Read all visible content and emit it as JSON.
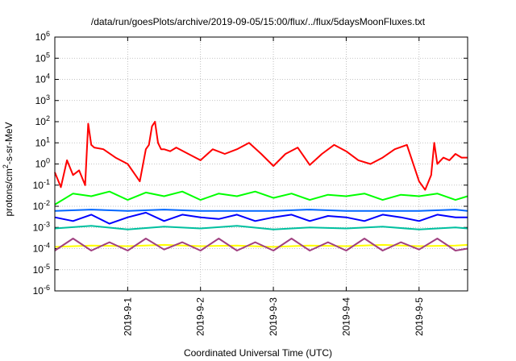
{
  "chart_data": {
    "type": "line",
    "title": "/data/run/goesPlots/archive/2019-09-05/15:00/flux/../flux/5daysMoonFluxes.txt",
    "xlabel": "Coordinated Universal Time (UTC)",
    "ylabel": "protons/cm^2-s-sr-MeV",
    "yscale": "log",
    "ylim": [
      1e-06,
      1000000.0
    ],
    "xlim": [
      "2019-08-31 00:00",
      "2019-09-05 16:00"
    ],
    "grid": true,
    "y_ticks": [
      "10^-6",
      "10^-5",
      "10^-4",
      "10^-3",
      "10^-2",
      "10^-1",
      "10^0",
      "10^1",
      "10^2",
      "10^3",
      "10^4",
      "10^5",
      "10^6"
    ],
    "x_ticks": [
      "2019-9-1",
      "2019-9-2",
      "2019-9-3",
      "2019-9-4",
      "2019-9-5"
    ],
    "series": [
      {
        "color": "#ff0000",
        "x": [
          "2019-08-31 00:00",
          "2019-08-31 02:00",
          "2019-08-31 04:00",
          "2019-08-31 06:00",
          "2019-08-31 08:00",
          "2019-08-31 10:00",
          "2019-08-31 11:00",
          "2019-08-31 12:00",
          "2019-08-31 13:00",
          "2019-08-31 16:00",
          "2019-08-31 20:00",
          "2019-09-01 00:00",
          "2019-09-01 04:00",
          "2019-09-01 06:00",
          "2019-09-01 07:00",
          "2019-09-01 08:00",
          "2019-09-01 09:00",
          "2019-09-01 10:00",
          "2019-09-01 11:00",
          "2019-09-01 12:00",
          "2019-09-01 14:00",
          "2019-09-01 16:00",
          "2019-09-01 20:00",
          "2019-09-02 00:00",
          "2019-09-02 04:00",
          "2019-09-02 08:00",
          "2019-09-02 12:00",
          "2019-09-02 16:00",
          "2019-09-02 20:00",
          "2019-09-03 00:00",
          "2019-09-03 04:00",
          "2019-09-03 08:00",
          "2019-09-03 12:00",
          "2019-09-03 16:00",
          "2019-09-03 20:00",
          "2019-09-04 00:00",
          "2019-09-04 04:00",
          "2019-09-04 08:00",
          "2019-09-04 12:00",
          "2019-09-04 16:00",
          "2019-09-04 20:00",
          "2019-09-05 00:00",
          "2019-09-05 02:00",
          "2019-09-05 04:00",
          "2019-09-05 05:00",
          "2019-09-05 06:00",
          "2019-09-05 08:00",
          "2019-09-05 10:00",
          "2019-09-05 12:00",
          "2019-09-05 14:00",
          "2019-09-05 16:00"
        ],
        "values": [
          0.4,
          0.08,
          1.5,
          0.3,
          0.5,
          0.1,
          80,
          8,
          6,
          5,
          2,
          1,
          0.15,
          5,
          8,
          60,
          100,
          10,
          5,
          5,
          4,
          6,
          3,
          1.5,
          5,
          3,
          5,
          10,
          3,
          0.8,
          3,
          6,
          0.9,
          3,
          8,
          4,
          1.5,
          1,
          2,
          5,
          8,
          0.15,
          0.06,
          0.3,
          10,
          1,
          2,
          1.5,
          3,
          2,
          2
        ]
      },
      {
        "color": "#00ff00",
        "x": [
          "2019-08-31 00:00",
          "2019-08-31 06:00",
          "2019-08-31 12:00",
          "2019-08-31 18:00",
          "2019-09-01 00:00",
          "2019-09-01 06:00",
          "2019-09-01 12:00",
          "2019-09-01 18:00",
          "2019-09-02 00:00",
          "2019-09-02 06:00",
          "2019-09-02 12:00",
          "2019-09-02 18:00",
          "2019-09-03 00:00",
          "2019-09-03 06:00",
          "2019-09-03 12:00",
          "2019-09-03 18:00",
          "2019-09-04 00:00",
          "2019-09-04 06:00",
          "2019-09-04 12:00",
          "2019-09-04 18:00",
          "2019-09-05 00:00",
          "2019-09-05 06:00",
          "2019-09-05 12:00",
          "2019-09-05 16:00"
        ],
        "values": [
          0.012,
          0.04,
          0.03,
          0.05,
          0.02,
          0.045,
          0.03,
          0.05,
          0.02,
          0.04,
          0.03,
          0.05,
          0.025,
          0.04,
          0.02,
          0.035,
          0.03,
          0.04,
          0.02,
          0.035,
          0.03,
          0.04,
          0.02,
          0.03
        ]
      },
      {
        "color": "#0066ff",
        "x": [
          "2019-08-31 00:00",
          "2019-08-31 12:00",
          "2019-09-01 00:00",
          "2019-09-01 12:00",
          "2019-09-02 00:00",
          "2019-09-02 12:00",
          "2019-09-03 00:00",
          "2019-09-03 12:00",
          "2019-09-04 00:00",
          "2019-09-04 12:00",
          "2019-09-05 00:00",
          "2019-09-05 12:00",
          "2019-09-05 16:00"
        ],
        "values": [
          0.006,
          0.007,
          0.006,
          0.007,
          0.006,
          0.006,
          0.006,
          0.007,
          0.006,
          0.006,
          0.006,
          0.007,
          0.006
        ]
      },
      {
        "color": "#0000ff",
        "x": [
          "2019-08-31 00:00",
          "2019-08-31 06:00",
          "2019-08-31 12:00",
          "2019-08-31 18:00",
          "2019-09-01 00:00",
          "2019-09-01 06:00",
          "2019-09-01 12:00",
          "2019-09-01 18:00",
          "2019-09-02 00:00",
          "2019-09-02 06:00",
          "2019-09-02 12:00",
          "2019-09-02 18:00",
          "2019-09-03 00:00",
          "2019-09-03 06:00",
          "2019-09-03 12:00",
          "2019-09-03 18:00",
          "2019-09-04 00:00",
          "2019-09-04 06:00",
          "2019-09-04 12:00",
          "2019-09-04 18:00",
          "2019-09-05 00:00",
          "2019-09-05 06:00",
          "2019-09-05 12:00",
          "2019-09-05 16:00"
        ],
        "values": [
          0.003,
          0.002,
          0.004,
          0.0015,
          0.003,
          0.005,
          0.002,
          0.004,
          0.003,
          0.0025,
          0.004,
          0.002,
          0.003,
          0.004,
          0.002,
          0.0035,
          0.003,
          0.002,
          0.004,
          0.003,
          0.002,
          0.004,
          0.003,
          0.003
        ]
      },
      {
        "color": "#00c0a0",
        "x": [
          "2019-08-31 00:00",
          "2019-08-31 12:00",
          "2019-09-01 00:00",
          "2019-09-01 12:00",
          "2019-09-02 00:00",
          "2019-09-02 12:00",
          "2019-09-03 00:00",
          "2019-09-03 12:00",
          "2019-09-04 00:00",
          "2019-09-04 12:00",
          "2019-09-05 00:00",
          "2019-09-05 12:00",
          "2019-09-05 16:00"
        ],
        "values": [
          0.0009,
          0.0012,
          0.0008,
          0.0011,
          0.0009,
          0.0012,
          0.0008,
          0.001,
          0.0009,
          0.0011,
          0.0008,
          0.001,
          0.0009
        ]
      },
      {
        "color": "#ffff00",
        "x": [
          "2019-08-31 00:00",
          "2019-08-31 12:00",
          "2019-09-01 00:00",
          "2019-09-01 12:00",
          "2019-09-02 00:00",
          "2019-09-02 12:00",
          "2019-09-03 00:00",
          "2019-09-03 12:00",
          "2019-09-04 00:00",
          "2019-09-04 12:00",
          "2019-09-05 00:00",
          "2019-09-05 12:00",
          "2019-09-05 16:00"
        ],
        "values": [
          0.00012,
          0.00014,
          0.00013,
          0.00015,
          0.00013,
          0.00014,
          0.00012,
          0.00014,
          0.00013,
          0.00015,
          0.00013,
          0.00014,
          0.00015
        ]
      },
      {
        "color": "#a04080",
        "x": [
          "2019-08-31 00:00",
          "2019-08-31 06:00",
          "2019-08-31 12:00",
          "2019-08-31 18:00",
          "2019-09-01 00:00",
          "2019-09-01 06:00",
          "2019-09-01 12:00",
          "2019-09-01 18:00",
          "2019-09-02 00:00",
          "2019-09-02 06:00",
          "2019-09-02 12:00",
          "2019-09-02 18:00",
          "2019-09-03 00:00",
          "2019-09-03 06:00",
          "2019-09-03 12:00",
          "2019-09-03 18:00",
          "2019-09-04 00:00",
          "2019-09-04 06:00",
          "2019-09-04 12:00",
          "2019-09-04 18:00",
          "2019-09-05 00:00",
          "2019-09-05 06:00",
          "2019-09-05 12:00",
          "2019-09-05 16:00"
        ],
        "values": [
          8e-05,
          0.0003,
          8e-05,
          0.0002,
          8e-05,
          0.0003,
          9e-05,
          0.0002,
          8e-05,
          0.0003,
          8e-05,
          0.0002,
          8e-05,
          0.0003,
          8e-05,
          0.0002,
          8e-05,
          0.0003,
          8e-05,
          0.0002,
          9e-05,
          0.0003,
          8e-05,
          0.0001
        ]
      }
    ]
  }
}
